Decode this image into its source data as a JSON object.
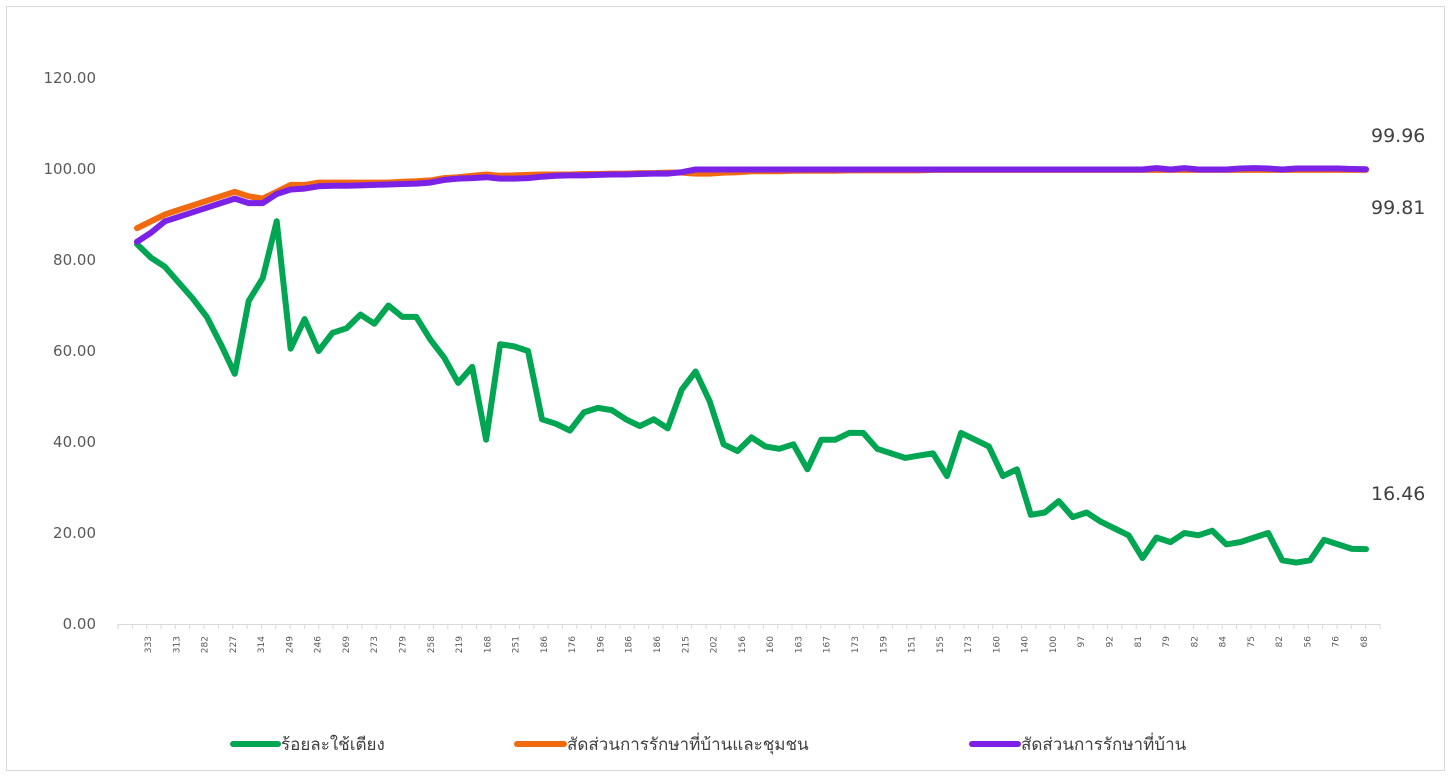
{
  "chart_data": {
    "type": "line",
    "title": "",
    "xlabel": "",
    "ylabel": "",
    "ylim": [
      0,
      120
    ],
    "y_ticks": [
      "0.00",
      "20.00",
      "40.00",
      "60.00",
      "80.00",
      "100.00",
      "120.00"
    ],
    "grid": false,
    "legend_position": "bottom",
    "x_tick_labels": [
      "333",
      "313",
      "282",
      "227",
      "314",
      "249",
      "246",
      "269",
      "273",
      "279",
      "258",
      "219",
      "168",
      "251",
      "186",
      "176",
      "196",
      "186",
      "186",
      "215",
      "202",
      "156",
      "160",
      "163",
      "167",
      "173",
      "159",
      "151",
      "155",
      "173",
      "160",
      "140",
      "100",
      "97",
      "92",
      "81",
      "79",
      "82",
      "84",
      "75",
      "82",
      "56",
      "76",
      "68"
    ],
    "series": [
      {
        "name": "ร้อยละใช้เตียง",
        "color": "#00a651",
        "values": [
          83.5,
          80.5,
          78.5,
          75.0,
          71.5,
          67.5,
          61.5,
          55.0,
          71.0,
          76.0,
          88.5,
          60.5,
          67.0,
          60.0,
          64.0,
          65.0,
          68.0,
          66.0,
          70.0,
          67.5,
          67.5,
          62.5,
          58.5,
          53.0,
          56.5,
          40.5,
          61.5,
          61.0,
          60.0,
          45.0,
          44.0,
          42.5,
          46.5,
          47.5,
          47.0,
          45.0,
          43.5,
          45.0,
          43.0,
          51.5,
          55.5,
          49.0,
          39.5,
          38.0,
          41.0,
          39.0,
          38.5,
          39.5,
          34.0,
          40.5,
          40.5,
          42.0,
          42.0,
          38.5,
          37.5,
          36.5,
          37.0,
          37.5,
          32.5,
          42.0,
          40.5,
          39.0,
          32.5,
          34.0,
          24.0,
          24.5,
          27.0,
          23.5,
          24.5,
          22.5,
          21.0,
          19.5,
          14.5,
          19.0,
          18.0,
          20.0,
          19.5,
          20.5,
          17.5,
          18.0,
          19.0,
          20.0,
          14.0,
          13.5,
          14.0,
          18.5,
          17.5,
          16.5,
          16.46
        ],
        "end_label": "16.46"
      },
      {
        "name": "สัดส่วนการรักษาที่บ้านและชุมชน",
        "color": "#f26a10",
        "values": [
          87.0,
          88.5,
          90.0,
          91.0,
          92.0,
          93.0,
          94.0,
          95.0,
          94.0,
          93.5,
          95.0,
          96.5,
          96.5,
          97.0,
          97.0,
          97.0,
          97.0,
          97.0,
          97.0,
          97.2,
          97.3,
          97.5,
          98.0,
          98.2,
          98.5,
          98.8,
          98.5,
          98.6,
          98.7,
          98.8,
          98.8,
          98.8,
          98.9,
          98.9,
          99.0,
          99.0,
          99.1,
          99.1,
          99.2,
          99.2,
          99.0,
          99.0,
          99.2,
          99.3,
          99.5,
          99.5,
          99.5,
          99.6,
          99.6,
          99.6,
          99.6,
          99.7,
          99.7,
          99.7,
          99.7,
          99.7,
          99.7,
          99.8,
          99.8,
          99.8,
          99.8,
          99.8,
          99.8,
          99.8,
          99.8,
          99.8,
          99.8,
          99.8,
          99.8,
          99.8,
          99.8,
          99.8,
          99.8,
          99.8,
          99.8,
          99.8,
          99.8,
          99.8,
          99.8,
          99.8,
          99.8,
          99.8,
          99.8,
          99.8,
          99.8,
          99.8,
          99.8,
          99.8,
          99.81
        ],
        "end_label": "99.81"
      },
      {
        "name": "สัดส่วนการรักษาที่บ้าน",
        "color": "#7b22e6",
        "values": [
          84.0,
          86.0,
          88.5,
          89.5,
          90.5,
          91.5,
          92.5,
          93.5,
          92.5,
          92.5,
          94.5,
          95.5,
          95.7,
          96.2,
          96.3,
          96.3,
          96.4,
          96.5,
          96.6,
          96.7,
          96.8,
          97.0,
          97.6,
          97.9,
          98.0,
          98.2,
          97.9,
          97.9,
          98.0,
          98.3,
          98.5,
          98.6,
          98.6,
          98.7,
          98.8,
          98.8,
          98.9,
          99.0,
          99.0,
          99.3,
          99.9,
          99.9,
          99.9,
          99.9,
          99.9,
          99.9,
          99.9,
          99.9,
          99.9,
          99.9,
          99.9,
          99.9,
          99.9,
          99.9,
          99.9,
          99.9,
          99.9,
          99.9,
          99.9,
          99.9,
          99.9,
          99.9,
          99.9,
          99.9,
          99.9,
          99.9,
          99.9,
          99.9,
          99.9,
          99.9,
          99.9,
          99.9,
          99.9,
          100.2,
          99.9,
          100.2,
          99.9,
          99.9,
          99.9,
          100.1,
          100.2,
          100.1,
          99.9,
          100.1,
          100.1,
          100.1,
          100.1,
          100.0,
          99.96
        ],
        "end_label": "99.96"
      }
    ]
  }
}
